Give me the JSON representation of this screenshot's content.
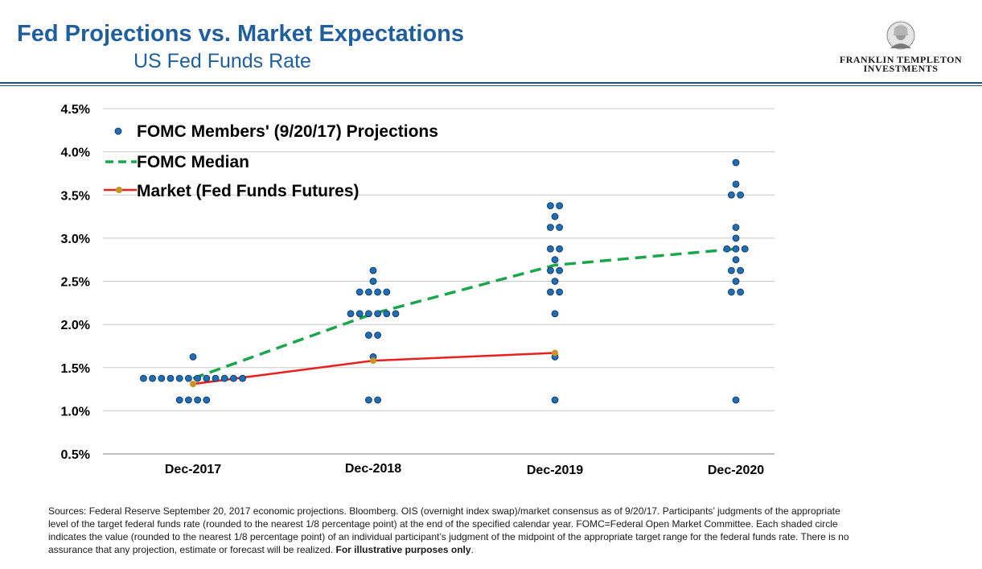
{
  "header": {
    "title": "Fed Projections vs. Market Expectations",
    "subtitle": "US Fed Funds Rate",
    "logo_line1": "FRANKLIN TEMPLETON",
    "logo_line2": "INVESTMENTS"
  },
  "colors": {
    "title": "#1f5f9e",
    "dots": "#1f6db5",
    "median": "#1aa64a",
    "market": "#e8211f",
    "market_marker": "#c8961e",
    "gridline": "#c8c8c8"
  },
  "chart_data": {
    "type": "scatter",
    "categories": [
      "Dec-2017",
      "Dec-2018",
      "Dec-2019",
      "Dec-2020"
    ],
    "ylim": [
      0.5,
      4.5
    ],
    "yticks": [
      "0.5%",
      "1.0%",
      "1.5%",
      "2.0%",
      "2.5%",
      "3.0%",
      "3.5%",
      "4.0%",
      "4.5%"
    ],
    "ytick_values": [
      0.5,
      1.0,
      1.5,
      2.0,
      2.5,
      3.0,
      3.5,
      4.0,
      4.5
    ],
    "grid": true,
    "legend_position": "top-left",
    "series": [
      {
        "name": "FOMC Members' (9/20/17) Projections",
        "type": "dots",
        "points": [
          [
            {
              "rate": 1.625,
              "count": 1
            },
            {
              "rate": 1.375,
              "count": 12
            },
            {
              "rate": 1.125,
              "count": 4
            }
          ],
          [
            {
              "rate": 2.625,
              "count": 1
            },
            {
              "rate": 2.5,
              "count": 1
            },
            {
              "rate": 2.375,
              "count": 4
            },
            {
              "rate": 2.125,
              "count": 6
            },
            {
              "rate": 1.875,
              "count": 2
            },
            {
              "rate": 1.625,
              "count": 1
            },
            {
              "rate": 1.125,
              "count": 2
            }
          ],
          [
            {
              "rate": 3.375,
              "count": 2
            },
            {
              "rate": 3.25,
              "count": 1
            },
            {
              "rate": 3.125,
              "count": 2
            },
            {
              "rate": 2.875,
              "count": 2
            },
            {
              "rate": 2.75,
              "count": 1
            },
            {
              "rate": 2.625,
              "count": 2
            },
            {
              "rate": 2.5,
              "count": 1
            },
            {
              "rate": 2.375,
              "count": 2
            },
            {
              "rate": 2.125,
              "count": 1
            },
            {
              "rate": 1.625,
              "count": 1
            },
            {
              "rate": 1.125,
              "count": 1
            }
          ],
          [
            {
              "rate": 3.875,
              "count": 1
            },
            {
              "rate": 3.625,
              "count": 1
            },
            {
              "rate": 3.5,
              "count": 2
            },
            {
              "rate": 3.125,
              "count": 1
            },
            {
              "rate": 3.0,
              "count": 1
            },
            {
              "rate": 2.875,
              "count": 3
            },
            {
              "rate": 2.75,
              "count": 1
            },
            {
              "rate": 2.625,
              "count": 2
            },
            {
              "rate": 2.5,
              "count": 1
            },
            {
              "rate": 2.375,
              "count": 2
            },
            {
              "rate": 1.125,
              "count": 1
            }
          ]
        ]
      },
      {
        "name": "FOMC Median",
        "type": "dashed-line",
        "values": [
          1.375,
          2.125,
          2.6875,
          2.875
        ]
      },
      {
        "name": "Market (Fed Funds Futures)",
        "type": "line",
        "values": [
          1.31,
          1.58,
          1.67,
          null
        ]
      }
    ]
  },
  "footnote": {
    "text": "Sources: Federal Reserve September 20, 2017 economic projections. Bloomberg. OIS (overnight index swap)/market consensus as of 9/20/17. Participants’ judgments of the appropriate level of the target federal funds rate (rounded to the nearest 1/8 percentage point) at the end of the specified calendar year. FOMC=Federal Open Market Committee. Each shaded circle indicates the value (rounded to the nearest 1/8 percentage point) of an individual participant’s judgment of the midpoint of the appropriate target range for the federal funds rate. There is no assurance that any projection, estimate or forecast will be realized. ",
    "emphasis": "For illustrative purposes only",
    "end": "."
  }
}
